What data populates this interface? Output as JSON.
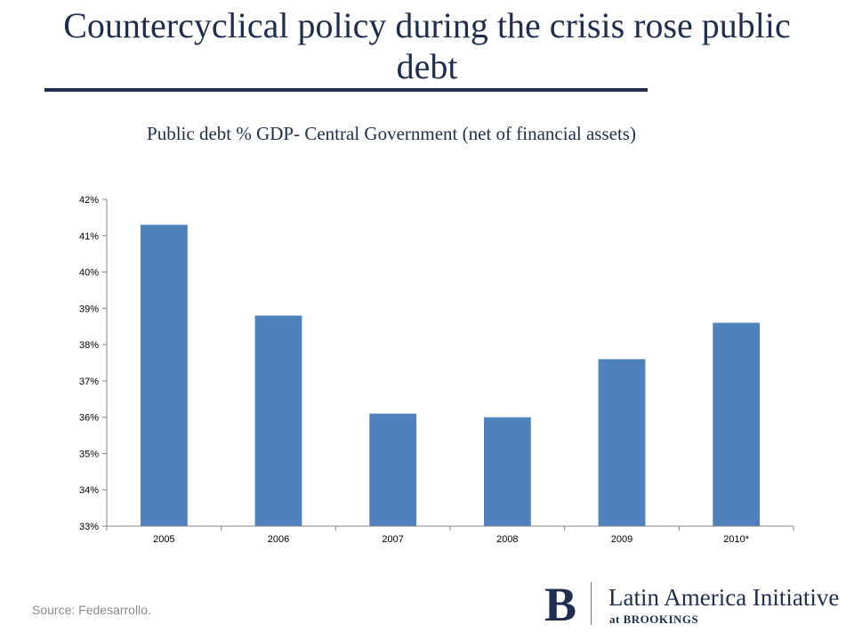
{
  "slide": {
    "title": "Countercyclical policy during the crisis rose public debt",
    "source": "Source: Fedesarrollo."
  },
  "logo": {
    "mark": "B",
    "name": "Latin America Initiative",
    "sub": "at BROOKINGS"
  },
  "colors": {
    "title": "#1f2d4e",
    "bar": "#4f81bd",
    "axis": "#868686",
    "source_text": "#8a8a8a"
  },
  "chart_data": {
    "type": "bar",
    "title": "Public debt % GDP- Central Government (net of financial assets)",
    "categories": [
      "2005",
      "2006",
      "2007",
      "2008",
      "2009",
      "2010*"
    ],
    "values": [
      41.3,
      38.8,
      36.1,
      36.0,
      37.6,
      38.6
    ],
    "ylim": [
      33,
      42
    ],
    "yticks": [
      "33%",
      "34%",
      "35%",
      "36%",
      "37%",
      "38%",
      "39%",
      "40%",
      "41%",
      "42%"
    ],
    "xlabel": "",
    "ylabel": "",
    "grid": false,
    "legend": "none"
  }
}
